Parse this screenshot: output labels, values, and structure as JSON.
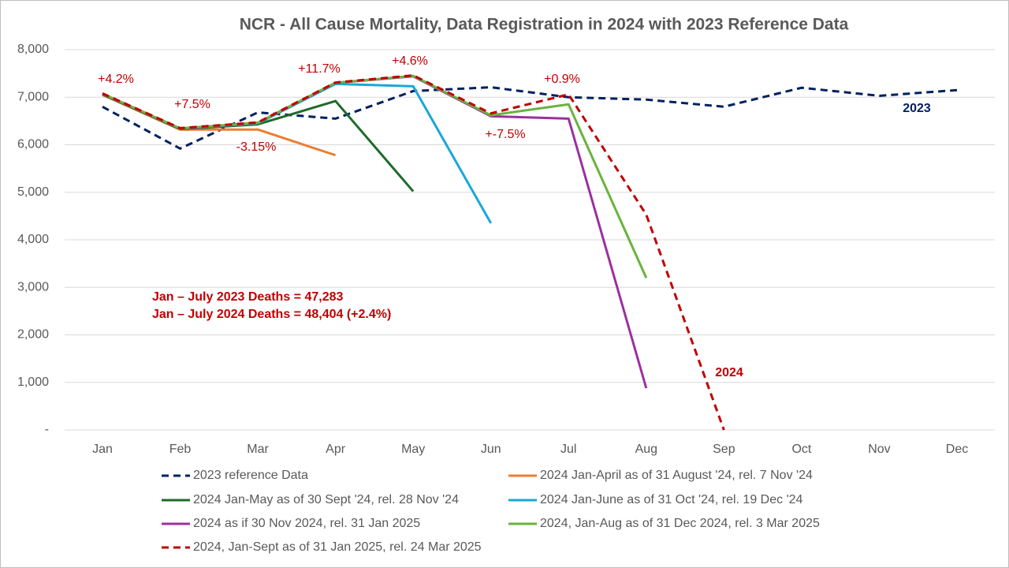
{
  "chart_data": {
    "type": "line",
    "title": "NCR - All Cause Mortality, Data Registration in 2024 with 2023 Reference Data",
    "categories": [
      "Jan",
      "Feb",
      "Mar",
      "Apr",
      "May",
      "Jun",
      "Jul",
      "Aug",
      "Sep",
      "Oct",
      "Nov",
      "Dec"
    ],
    "ylim": [
      0,
      8000
    ],
    "yticks": [
      {
        "value": 0,
        "label": "-"
      },
      {
        "value": 1000,
        "label": "1,000"
      },
      {
        "value": 2000,
        "label": "2,000"
      },
      {
        "value": 3000,
        "label": "3,000"
      },
      {
        "value": 4000,
        "label": "4,000"
      },
      {
        "value": 5000,
        "label": "5,000"
      },
      {
        "value": 6000,
        "label": "6,000"
      },
      {
        "value": 7000,
        "label": "7,000"
      },
      {
        "value": 8000,
        "label": "8,000"
      }
    ],
    "grid": true,
    "legend": "bottom",
    "series": [
      {
        "name": "2023 reference Data",
        "color": "#002060",
        "dashed": true,
        "values": [
          6800,
          5920,
          6680,
          6550,
          7130,
          7210,
          7000,
          6950,
          6800,
          7200,
          7030,
          7150
        ]
      },
      {
        "name": "2024 Jan-April as of 31 August '24, rel. 7 Nov '24",
        "color": "#ed7d31",
        "dashed": false,
        "values": [
          7050,
          6320,
          6320,
          5780,
          null,
          null,
          null,
          null,
          null,
          null,
          null,
          null
        ]
      },
      {
        "name": "2024 Jan-May as of 30 Sept '24, rel. 28 Nov '24",
        "color": "#1e6b2a",
        "dashed": false,
        "values": [
          7060,
          6330,
          6430,
          6920,
          5020,
          null,
          null,
          null,
          null,
          null,
          null,
          null
        ]
      },
      {
        "name": "2024 Jan-June as of 31 Oct '24, rel. 19 Dec '24",
        "color": "#1aa7d8",
        "dashed": false,
        "values": [
          7070,
          6340,
          6450,
          7280,
          7230,
          4350,
          null,
          null,
          null,
          null,
          null,
          null
        ]
      },
      {
        "name": "2024 as if 30 Nov 2024, rel. 31 Jan 2025",
        "color": "#9b30a0",
        "dashed": false,
        "values": [
          7070,
          6340,
          6460,
          7300,
          7440,
          6600,
          6550,
          880,
          null,
          null,
          null,
          null
        ]
      },
      {
        "name": "2024, Jan-Aug as of 31 Dec 2024, rel. 3 Mar 2025",
        "color": "#6ab33e",
        "dashed": false,
        "values": [
          7075,
          6345,
          6465,
          7305,
          7450,
          6620,
          6850,
          3200,
          null,
          null,
          null,
          null
        ]
      },
      {
        "name": "2024, Jan-Sept as of 31 Jan 2025, rel. 24 Mar 2025",
        "color": "#c00000",
        "dashed": true,
        "values": [
          7080,
          6350,
          6470,
          7310,
          7460,
          6660,
          7060,
          4530,
          0,
          null,
          null,
          null
        ]
      }
    ],
    "annotations": [
      {
        "text": "+4.2%",
        "color": "#c00000"
      },
      {
        "text": "+7.5%",
        "color": "#c00000"
      },
      {
        "text": "-3.15%",
        "color": "#c00000"
      },
      {
        "text": "+11.7%",
        "color": "#c00000"
      },
      {
        "text": "+4.6%",
        "color": "#c00000"
      },
      {
        "text": "+-7.5%",
        "color": "#c00000"
      },
      {
        "text": "+0.9%",
        "color": "#c00000"
      },
      {
        "text": "2023",
        "color": "#002060"
      },
      {
        "text": "2024",
        "color": "#c00000"
      },
      {
        "text": "Jan – July 2023 Deaths  = 47,283",
        "color": "#c00000"
      },
      {
        "text": "Jan – July 2024 Deaths  = 48,404 (+2.4%)",
        "color": "#c00000"
      }
    ]
  }
}
